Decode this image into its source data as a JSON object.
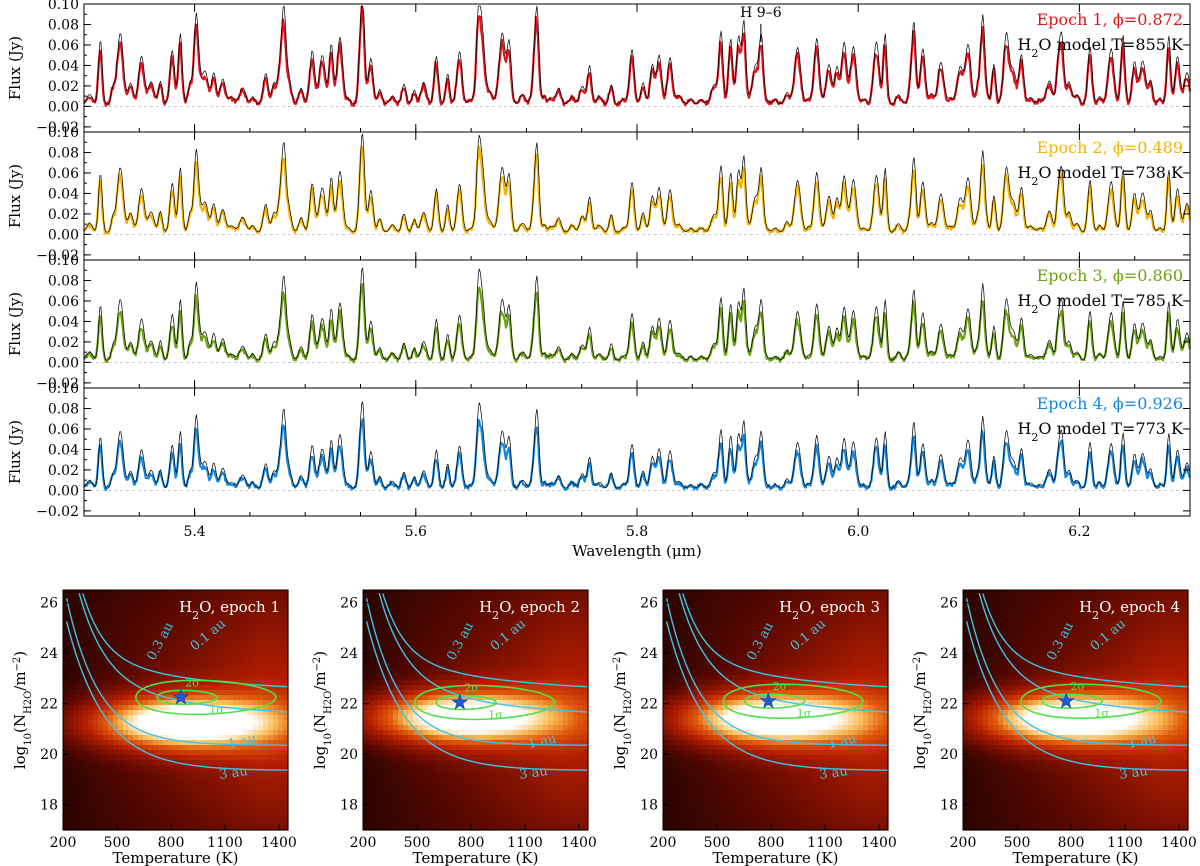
{
  "chart_data": [
    {
      "type": "line",
      "xlabel": "Wavelength (μm)",
      "xlim": [
        5.3,
        6.3
      ],
      "x_ticks": [
        "5.4",
        "5.6",
        "5.8",
        "6.0",
        "6.2"
      ],
      "annotation": {
        "text": "H 9–6",
        "x": 5.912
      },
      "panels": [
        {
          "ylabel": "Flux (Jy)",
          "ylim": [
            -0.025,
            0.1
          ],
          "y_ticks": [
            "−0.02",
            "0.00",
            "0.02",
            "0.04",
            "0.06",
            "0.08",
            "0.10"
          ],
          "series": [
            {
              "name": "Epoch 1, ϕ=0.872",
              "color": "#e0141c"
            },
            {
              "name": "H2O model T=855 K",
              "color": "#000000"
            }
          ],
          "legend_lines": [
            {
              "pre": "Epoch 1, ϕ=0.872",
              "color": "#e0141c"
            },
            {
              "pre": "H",
              "sub": "2",
              "post": "O model T=855 K",
              "color": "#000000"
            }
          ]
        },
        {
          "ylabel": "Flux (Jy)",
          "ylim": [
            -0.025,
            0.1
          ],
          "y_ticks": [
            "−0.02",
            "0.00",
            "0.02",
            "0.04",
            "0.06",
            "0.08",
            "0.10"
          ],
          "series": [
            {
              "name": "Epoch 2, ϕ=0.489",
              "color": "#f5b400"
            },
            {
              "name": "H2O model T=738 K",
              "color": "#000000"
            }
          ],
          "legend_lines": [
            {
              "pre": "Epoch 2, ϕ=0.489",
              "color": "#f5b400"
            },
            {
              "pre": "H",
              "sub": "2",
              "post": "O model T=738 K",
              "color": "#000000"
            }
          ]
        },
        {
          "ylabel": "Flux (Jy)",
          "ylim": [
            -0.025,
            0.1
          ],
          "y_ticks": [
            "−0.02",
            "0.00",
            "0.02",
            "0.04",
            "0.06",
            "0.08",
            "0.10"
          ],
          "series": [
            {
              "name": "Epoch 3, ϕ=0.860",
              "color": "#6aa211"
            },
            {
              "name": "H2O model T=785 K",
              "color": "#000000"
            }
          ],
          "legend_lines": [
            {
              "pre": "Epoch 3, ϕ=0.860",
              "color": "#6aa211"
            },
            {
              "pre": "H",
              "sub": "2",
              "post": "O model T=785 K",
              "color": "#000000"
            }
          ]
        },
        {
          "ylabel": "Flux (Jy)",
          "ylim": [
            -0.025,
            0.1
          ],
          "y_ticks": [
            "−0.02",
            "0.00",
            "0.02",
            "0.04",
            "0.06",
            "0.08",
            "0.10"
          ],
          "series": [
            {
              "name": "Epoch 4, ϕ=0.926",
              "color": "#1486dc"
            },
            {
              "name": "H2O model T=773 K",
              "color": "#000000"
            }
          ],
          "legend_lines": [
            {
              "pre": "Epoch 4, ϕ=0.926",
              "color": "#1486dc"
            },
            {
              "pre": "H",
              "sub": "2",
              "post": "O model T=773 K",
              "color": "#000000"
            }
          ]
        }
      ]
    },
    {
      "type": "heatmap",
      "xlabel": "Temperature (K)",
      "ylabel_parts": {
        "pre": "log",
        "sub1": "10",
        "mid": "(N",
        "sub2": "H2O",
        "post": "/m",
        "sup": "−2",
        "end": ")"
      },
      "xlim": [
        200,
        1450
      ],
      "ylim": [
        17,
        26.5
      ],
      "x_ticks": [
        200,
        500,
        800,
        1100,
        1400
      ],
      "y_ticks": [
        18,
        20,
        22,
        24,
        26
      ],
      "radius_contours": [
        "0.1 au",
        "0.3 au",
        "1 au",
        "3 au"
      ],
      "contour_labels": {
        "r01": "0.1 au",
        "r03": "0.3 au",
        "r1": "1 au",
        "r3": "3 au",
        "one_sigma": "1σ",
        "two_sigma": "2σ"
      },
      "colors": {
        "radius_contour": "#3fc3e8",
        "sigma_contour": "#4ee04e",
        "best_fit": "#1f5bd6"
      },
      "panels": [
        {
          "title_pre": "H",
          "title_sub": "2",
          "title_post": "O, epoch 1",
          "best_fit": {
            "T": 855,
            "logN": 22.25
          }
        },
        {
          "title_pre": "H",
          "title_sub": "2",
          "title_post": "O, epoch 2",
          "best_fit": {
            "T": 738,
            "logN": 22.05
          }
        },
        {
          "title_pre": "H",
          "title_sub": "2",
          "title_post": "O, epoch 3",
          "best_fit": {
            "T": 785,
            "logN": 22.1
          }
        },
        {
          "title_pre": "H",
          "title_sub": "2",
          "title_post": "O, epoch 4",
          "best_fit": {
            "T": 773,
            "logN": 22.1
          }
        }
      ]
    }
  ]
}
